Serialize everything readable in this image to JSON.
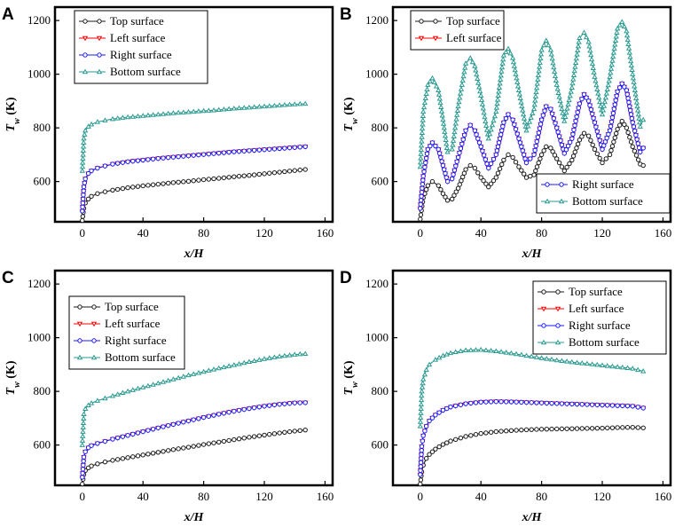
{
  "figure": {
    "colors": {
      "top": "#1a1a1a",
      "left": "#ff0000",
      "right": "#1a1aff",
      "bottom": "#2a9a90",
      "axis": "#000000"
    },
    "series_names": [
      "Top surface",
      "Left surface",
      "Right surface",
      "Bottom surface"
    ]
  },
  "chart_data": [
    {
      "type": "line",
      "panel_label": "A",
      "xlabel": "x/H",
      "ylabel_main": "T",
      "ylabel_sub": "w",
      "ylabel_unit": " (K)",
      "xlim": [
        -18,
        165
      ],
      "ylim": [
        450,
        1250
      ],
      "xticks": [
        0,
        40,
        80,
        120,
        160
      ],
      "yticks": [
        600,
        800,
        1000,
        1200
      ],
      "legend_position": "top-left",
      "series": [
        {
          "name": "Top surface",
          "key": "top",
          "x": [
            0,
            1,
            2,
            4,
            6,
            10,
            15,
            20,
            30,
            40,
            50,
            60,
            70,
            80,
            90,
            100,
            110,
            120,
            130,
            140,
            147
          ],
          "values": [
            455,
            500,
            520,
            535,
            545,
            555,
            562,
            568,
            577,
            584,
            590,
            596,
            601,
            607,
            612,
            618,
            623,
            629,
            635,
            641,
            645
          ]
        },
        {
          "name": "Left surface",
          "key": "left",
          "x": [
            0,
            1,
            2,
            4,
            6,
            10,
            15,
            20,
            30,
            40,
            50,
            60,
            70,
            80,
            90,
            100,
            110,
            120,
            130,
            140,
            147
          ],
          "values": [
            490,
            580,
            610,
            630,
            640,
            650,
            658,
            665,
            674,
            680,
            686,
            691,
            696,
            701,
            706,
            711,
            715,
            719,
            723,
            727,
            730
          ]
        },
        {
          "name": "Right surface",
          "key": "right",
          "x": [
            0,
            1,
            2,
            4,
            6,
            10,
            15,
            20,
            30,
            40,
            50,
            60,
            70,
            80,
            90,
            100,
            110,
            120,
            130,
            140,
            147
          ],
          "values": [
            490,
            580,
            610,
            630,
            640,
            650,
            658,
            665,
            674,
            680,
            686,
            691,
            696,
            701,
            706,
            711,
            715,
            719,
            723,
            727,
            730
          ]
        },
        {
          "name": "Bottom surface",
          "key": "bottom",
          "x": [
            0,
            1,
            2,
            4,
            6,
            10,
            15,
            20,
            30,
            40,
            50,
            60,
            70,
            80,
            90,
            100,
            110,
            120,
            130,
            140,
            147
          ],
          "values": [
            640,
            760,
            790,
            805,
            813,
            822,
            828,
            833,
            840,
            845,
            850,
            855,
            859,
            863,
            867,
            872,
            876,
            880,
            884,
            888,
            890
          ]
        }
      ]
    },
    {
      "type": "line",
      "panel_label": "B",
      "xlabel": "x/H",
      "ylabel_main": "T",
      "ylabel_sub": "w",
      "ylabel_unit": " (K)",
      "xlim": [
        -18,
        165
      ],
      "ylim": [
        450,
        1250
      ],
      "xticks": [
        0,
        40,
        80,
        120,
        160
      ],
      "yticks": [
        600,
        800,
        1000,
        1200
      ],
      "legend_position": "top-left and bottom-right",
      "series": [
        {
          "name": "Top surface",
          "key": "top",
          "x": [
            0,
            2,
            5,
            8,
            12,
            15,
            18,
            21,
            25,
            30,
            33,
            36,
            40,
            45,
            50,
            55,
            58,
            61,
            65,
            70,
            75,
            80,
            83,
            86,
            90,
            95,
            100,
            105,
            108,
            111,
            115,
            120,
            125,
            130,
            133,
            136,
            140,
            145,
            147
          ],
          "values": [
            460,
            540,
            585,
            600,
            585,
            555,
            530,
            535,
            575,
            645,
            660,
            650,
            615,
            580,
            615,
            680,
            700,
            690,
            655,
            615,
            625,
            700,
            730,
            725,
            685,
            640,
            680,
            755,
            780,
            770,
            720,
            670,
            700,
            795,
            825,
            800,
            730,
            665,
            660
          ]
        },
        {
          "name": "Left surface",
          "key": "left",
          "x": [
            0,
            2,
            5,
            8,
            12,
            15,
            18,
            21,
            25,
            30,
            33,
            36,
            40,
            45,
            50,
            55,
            58,
            61,
            65,
            70,
            75,
            80,
            83,
            86,
            90,
            95,
            100,
            105,
            108,
            111,
            115,
            120,
            125,
            130,
            133,
            136,
            140,
            145,
            147
          ],
          "values": [
            500,
            620,
            720,
            745,
            720,
            660,
            600,
            610,
            690,
            790,
            810,
            790,
            730,
            650,
            700,
            820,
            850,
            830,
            760,
            670,
            700,
            830,
            880,
            870,
            800,
            705,
            760,
            890,
            925,
            900,
            820,
            720,
            790,
            935,
            965,
            940,
            820,
            710,
            725
          ]
        },
        {
          "name": "Right surface",
          "key": "right",
          "x": [
            0,
            2,
            5,
            8,
            12,
            15,
            18,
            21,
            25,
            30,
            33,
            36,
            40,
            45,
            50,
            55,
            58,
            61,
            65,
            70,
            75,
            80,
            83,
            86,
            90,
            95,
            100,
            105,
            108,
            111,
            115,
            120,
            125,
            130,
            133,
            136,
            140,
            145,
            147
          ],
          "values": [
            500,
            620,
            720,
            745,
            720,
            660,
            600,
            610,
            690,
            790,
            810,
            790,
            730,
            650,
            700,
            820,
            850,
            830,
            760,
            670,
            700,
            830,
            880,
            870,
            800,
            705,
            760,
            890,
            925,
            900,
            820,
            720,
            790,
            935,
            965,
            940,
            820,
            710,
            725
          ]
        },
        {
          "name": "Bottom surface",
          "key": "bottom",
          "x": [
            0,
            2,
            5,
            8,
            12,
            15,
            18,
            21,
            25,
            30,
            33,
            36,
            40,
            45,
            50,
            55,
            58,
            61,
            65,
            70,
            75,
            80,
            83,
            86,
            90,
            95,
            100,
            105,
            108,
            111,
            115,
            120,
            125,
            130,
            133,
            136,
            140,
            145,
            147
          ],
          "values": [
            655,
            860,
            960,
            985,
            940,
            830,
            710,
            720,
            880,
            1040,
            1060,
            1030,
            920,
            760,
            860,
            1070,
            1095,
            1060,
            940,
            790,
            870,
            1090,
            1125,
            1090,
            960,
            825,
            950,
            1135,
            1155,
            1120,
            990,
            850,
            990,
            1170,
            1195,
            1160,
            1000,
            805,
            830
          ]
        }
      ]
    },
    {
      "type": "line",
      "panel_label": "C",
      "xlabel": "x/H",
      "ylabel_main": "T",
      "ylabel_sub": "w",
      "ylabel_unit": " (K)",
      "xlim": [
        -18,
        165
      ],
      "ylim": [
        450,
        1250
      ],
      "xticks": [
        0,
        40,
        80,
        120,
        160
      ],
      "yticks": [
        600,
        800,
        1000,
        1200
      ],
      "legend_position": "center-left",
      "series": [
        {
          "name": "Top surface",
          "key": "top",
          "x": [
            0,
            1,
            2,
            4,
            6,
            10,
            15,
            20,
            30,
            40,
            50,
            60,
            70,
            80,
            90,
            100,
            110,
            120,
            130,
            140,
            147
          ],
          "values": [
            455,
            490,
            505,
            515,
            522,
            530,
            537,
            543,
            553,
            563,
            573,
            583,
            592,
            602,
            611,
            620,
            629,
            637,
            645,
            652,
            656
          ]
        },
        {
          "name": "Left surface",
          "key": "left",
          "x": [
            0,
            1,
            2,
            4,
            6,
            10,
            15,
            20,
            30,
            40,
            50,
            60,
            70,
            80,
            90,
            100,
            110,
            120,
            130,
            140,
            147
          ],
          "values": [
            480,
            555,
            575,
            590,
            598,
            606,
            614,
            622,
            636,
            650,
            664,
            677,
            690,
            703,
            715,
            726,
            736,
            745,
            752,
            757,
            758
          ]
        },
        {
          "name": "Right surface",
          "key": "right",
          "x": [
            0,
            1,
            2,
            4,
            6,
            10,
            15,
            20,
            30,
            40,
            50,
            60,
            70,
            80,
            90,
            100,
            110,
            120,
            130,
            140,
            147
          ],
          "values": [
            480,
            555,
            575,
            590,
            598,
            606,
            614,
            622,
            636,
            650,
            664,
            677,
            690,
            703,
            715,
            726,
            736,
            745,
            752,
            757,
            758
          ]
        },
        {
          "name": "Bottom surface",
          "key": "bottom",
          "x": [
            0,
            1,
            2,
            4,
            6,
            10,
            15,
            20,
            30,
            40,
            50,
            60,
            70,
            80,
            90,
            100,
            110,
            120,
            130,
            140,
            147
          ],
          "values": [
            600,
            715,
            735,
            748,
            756,
            765,
            774,
            783,
            800,
            815,
            830,
            845,
            860,
            873,
            886,
            898,
            910,
            921,
            930,
            937,
            940
          ]
        }
      ]
    },
    {
      "type": "line",
      "panel_label": "D",
      "xlabel": "x/H",
      "ylabel_main": "T",
      "ylabel_sub": "w",
      "ylabel_unit": " (K)",
      "xlim": [
        -18,
        165
      ],
      "ylim": [
        450,
        1250
      ],
      "xticks": [
        0,
        40,
        80,
        120,
        160
      ],
      "yticks": [
        600,
        800,
        1000,
        1200
      ],
      "legend_position": "top-right",
      "series": [
        {
          "name": "Top surface",
          "key": "top",
          "x": [
            0,
            1,
            2,
            4,
            6,
            10,
            15,
            20,
            30,
            40,
            50,
            60,
            70,
            80,
            90,
            100,
            110,
            120,
            130,
            140,
            147
          ],
          "values": [
            455,
            500,
            525,
            550,
            565,
            585,
            602,
            615,
            632,
            643,
            650,
            654,
            657,
            659,
            660,
            661,
            662,
            663,
            665,
            666,
            664
          ]
        },
        {
          "name": "Left surface",
          "key": "left",
          "x": [
            0,
            1,
            2,
            4,
            6,
            10,
            15,
            20,
            30,
            40,
            50,
            60,
            70,
            80,
            90,
            100,
            110,
            120,
            130,
            140,
            147
          ],
          "values": [
            490,
            595,
            635,
            670,
            690,
            712,
            730,
            742,
            754,
            760,
            762,
            761,
            759,
            757,
            755,
            753,
            751,
            749,
            747,
            745,
            738
          ]
        },
        {
          "name": "Right surface",
          "key": "right",
          "x": [
            0,
            1,
            2,
            4,
            6,
            10,
            15,
            20,
            30,
            40,
            50,
            60,
            70,
            80,
            90,
            100,
            110,
            120,
            130,
            140,
            147
          ],
          "values": [
            490,
            595,
            635,
            670,
            690,
            712,
            730,
            742,
            754,
            760,
            762,
            761,
            759,
            757,
            755,
            753,
            751,
            749,
            747,
            745,
            738
          ]
        },
        {
          "name": "Bottom surface",
          "key": "bottom",
          "x": [
            0,
            1,
            2,
            4,
            6,
            10,
            15,
            20,
            30,
            40,
            50,
            60,
            70,
            80,
            90,
            100,
            110,
            120,
            130,
            140,
            147
          ],
          "values": [
            670,
            800,
            845,
            880,
            900,
            918,
            933,
            943,
            953,
            955,
            950,
            942,
            933,
            924,
            916,
            909,
            903,
            897,
            891,
            885,
            875
          ]
        }
      ]
    }
  ]
}
